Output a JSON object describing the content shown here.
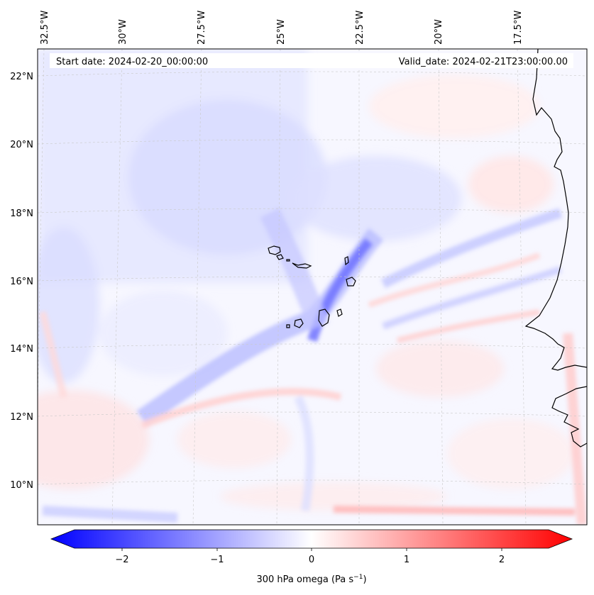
{
  "map": {
    "lon_labels": [
      "32.5°W",
      "30°W",
      "27.5°W",
      "25°W",
      "22.5°W",
      "20°W",
      "17.5°W"
    ],
    "lat_labels": [
      "22°N",
      "20°N",
      "18°N",
      "16°N",
      "14°N",
      "12°N",
      "10°N"
    ],
    "start_date": "Start date: 2024-02-20_00:00:00",
    "valid_date": "Valid_date: 2024-02-21T23:00:00.00",
    "field": "300 hPa omega",
    "colormap": "bwr"
  },
  "colorbar": {
    "ticks": [
      "−2",
      "−1",
      "0",
      "1",
      "2"
    ],
    "label_prefix": "300 hPa omega (Pa s",
    "label_exp": "−1",
    "label_suffix": ")",
    "colors": {
      "min": "#0000ff",
      "mid": "#ffffff",
      "max": "#ff0000"
    },
    "range": [
      -2.7,
      2.7
    ]
  }
}
